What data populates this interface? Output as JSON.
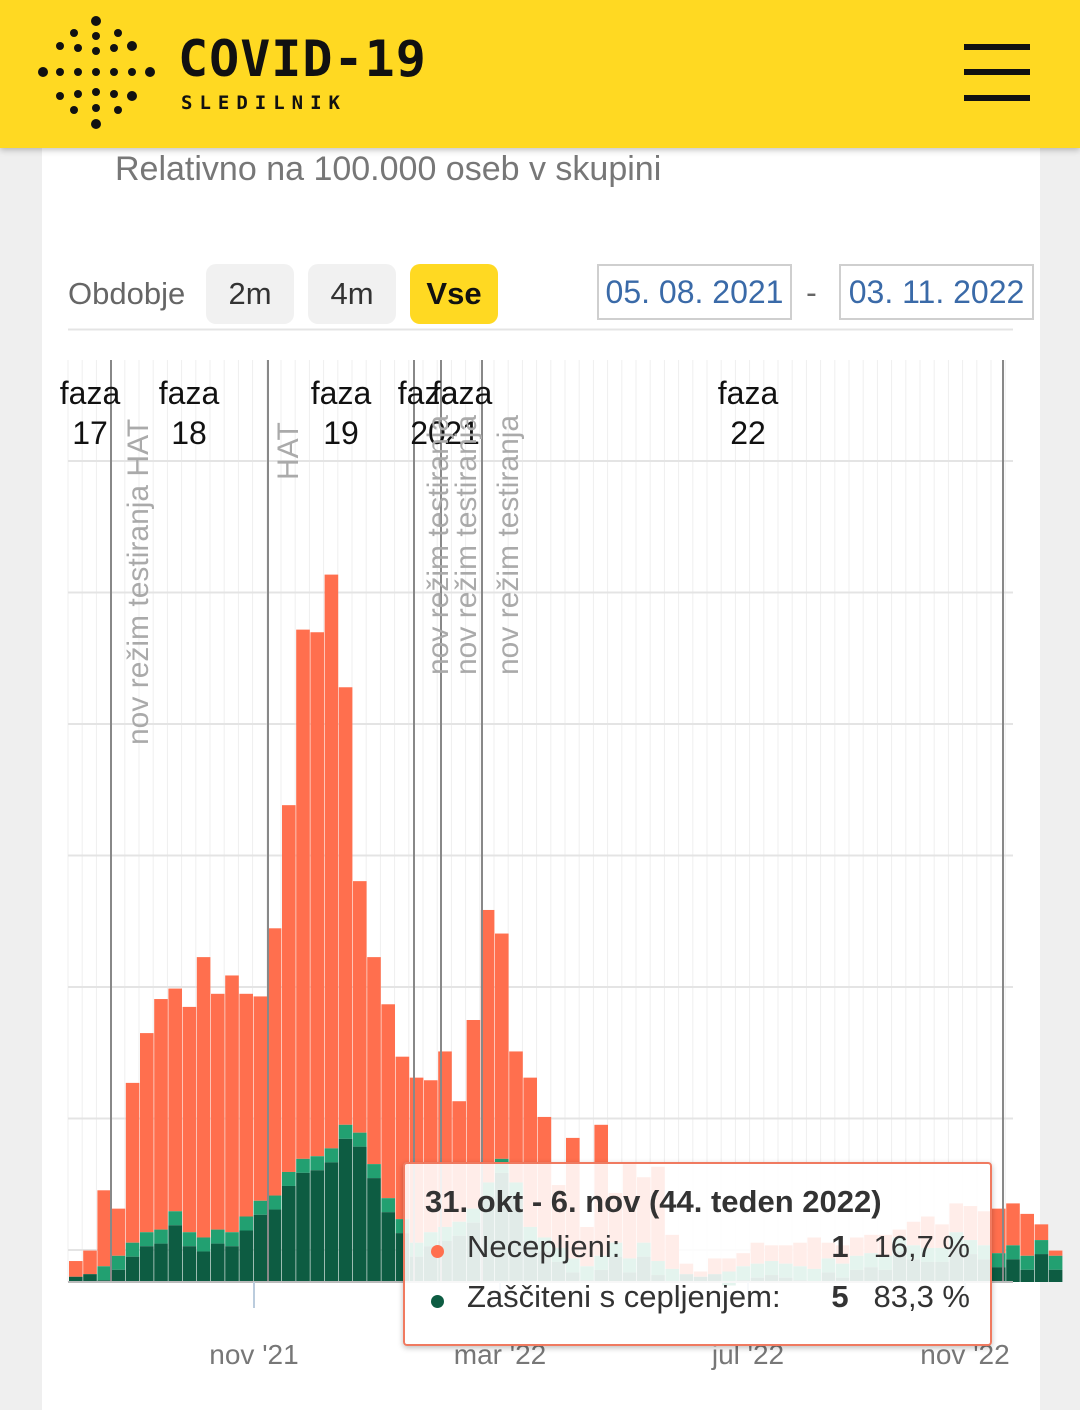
{
  "header": {
    "title": "COVID-19",
    "subtitle": "SLEDILNIK",
    "brand_color": "#ffd922"
  },
  "subtitle": "Relativno na 100.000 oseb v skupini",
  "period": {
    "label": "Obdobje",
    "options": [
      "2m",
      "4m",
      "Vse"
    ],
    "selected": "Vse",
    "date_from": "05. 08. 2021",
    "date_separator": "-",
    "date_to": "03. 11. 2022"
  },
  "tooltip": {
    "title": "31. okt - 6. nov (44. teden 2022)",
    "rows": [
      {
        "name": "Necepljeni:",
        "count": "1",
        "percent": "16,7 %",
        "color": "#ff6f4e"
      },
      {
        "name": "Zaščiteni s cepljenjem:",
        "count": "5",
        "percent": "83,3 %",
        "color": "#0d5c42"
      }
    ]
  },
  "chart_data": {
    "type": "bar",
    "stacked": true,
    "x_axis": {
      "ticks": [
        "nov '21",
        "mar '22",
        "jul '22",
        "nov '22"
      ]
    },
    "grid": true,
    "series": [
      {
        "name": "Necepljeni",
        "color": "#ff6f4e",
        "values": [
          0.6,
          0.9,
          2.9,
          1.8,
          6.1,
          7.6,
          8.8,
          8.5,
          8.6,
          10.7,
          9.0,
          9.8,
          8.5,
          7.8,
          10.2,
          14.0,
          20.2,
          20.0,
          21.9,
          16.7,
          9.6,
          7.9,
          7.4,
          6.2,
          6.3,
          5.8,
          6.7,
          4.6,
          7.2,
          10.4,
          8.6,
          5.0,
          5.7,
          4.6,
          2.4,
          4.6,
          1.5,
          5.0,
          1.9,
          3.6,
          2.5,
          3.6,
          1.3,
          0.4,
          0.2,
          0.6,
          0.5,
          0.5,
          0.8,
          0.6,
          0.7,
          0.9,
          1.2,
          0.6,
          0.7,
          0.7,
          0.7,
          0.8,
          0.3,
          0.9,
          1.2,
          0.9,
          1.1,
          1.3,
          1.3,
          1.7,
          1.6,
          1.6,
          0.6,
          0.2
        ]
      },
      {
        "name": "Zaščiteni s cepljenjem",
        "color": "#0d5c42",
        "values": [
          0.2,
          0.3,
          0.6,
          1.0,
          1.5,
          1.9,
          2.0,
          2.7,
          1.9,
          1.7,
          2.0,
          1.9,
          2.5,
          3.1,
          3.3,
          4.2,
          4.7,
          4.8,
          5.1,
          6.0,
          5.7,
          4.5,
          3.2,
          2.4,
          1.5,
          1.9,
          2.1,
          2.3,
          2.8,
          3.8,
          4.7,
          3.8,
          2.1,
          1.7,
          1.3,
          0.9,
          0.6,
          1.0,
          1.5,
          0.9,
          1.5,
          0.8,
          0.5,
          0.3,
          0.2,
          0.3,
          0.4,
          0.6,
          0.7,
          0.8,
          0.7,
          0.6,
          0.5,
          0.9,
          0.7,
          1.0,
          1.1,
          1.0,
          1.7,
          1.4,
          1.3,
          1.3,
          1.9,
          1.6,
          1.4,
          1.1,
          1.4,
          1.0,
          1.6,
          1.0
        ]
      }
    ],
    "highlight_color": "#22a071",
    "phases": [
      {
        "label": "faza",
        "number": "17"
      },
      {
        "label": "faza",
        "number": "18"
      },
      {
        "label": "faza",
        "number": "19"
      },
      {
        "label": "faza",
        "number": "20"
      },
      {
        "label": "faza",
        "number": "21"
      },
      {
        "label": "faza",
        "number": "22"
      }
    ],
    "annotations": [
      {
        "text": "nov režim testiranja HAT"
      },
      {
        "text": "HAT"
      },
      {
        "text": "nov režim testiranja"
      },
      {
        "text": "nov režim testiranja"
      },
      {
        "text": "nov režim testiranja"
      }
    ]
  }
}
